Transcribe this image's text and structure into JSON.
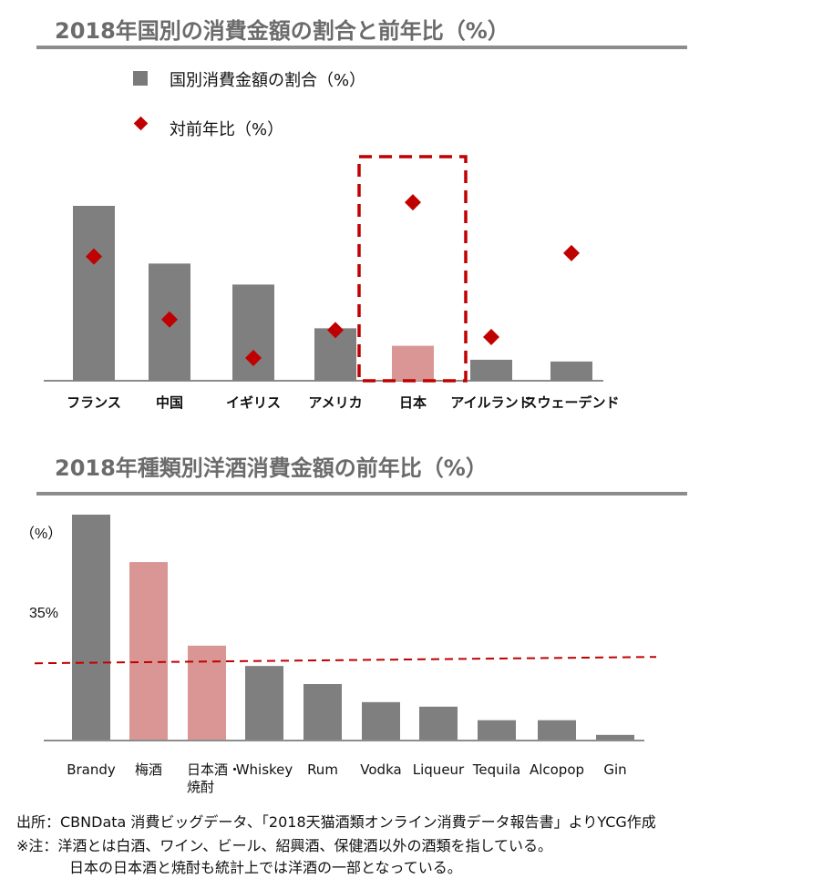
{
  "chart1": {
    "title": "2018年国別の消費金額の割合と前年比（%）",
    "legend": [
      {
        "label": "国別消費金額の割合（%）",
        "marker": "square"
      },
      {
        "label": "対前年比（%）",
        "marker": "diamond"
      }
    ]
  },
  "chart2": {
    "title": "2018年種類別洋酒消費金額の前年比（%）",
    "unit_label": "（%）",
    "ref_label": "35%"
  },
  "colors": {
    "bar": "#7f7f7f",
    "highlight": "#d99694",
    "marker": "#c00000",
    "dash": "#c00000"
  },
  "chart_data": [
    {
      "type": "bar",
      "categories": [
        "フランス",
        "中国",
        "イギリス",
        "アメリカ",
        "日本",
        "アイルランド",
        "スウェーデンド"
      ],
      "series": [
        {
          "name": "国別消費金額の割合（%）",
          "values": [
            100,
            67,
            55,
            30,
            20,
            12,
            11
          ]
        },
        {
          "name": "対前年比（%）",
          "marker": "diamond",
          "values": [
            71,
            35,
            13,
            29,
            102,
            25,
            73
          ]
        }
      ],
      "highlight": [
        "日本"
      ],
      "annotation": "dashed box around 日本"
    },
    {
      "type": "bar",
      "categories": [
        "Brandy",
        "梅酒",
        "日本酒・\n焼酎",
        "Whiskey",
        "Rum",
        "Vodka",
        "Liqueur",
        "Tequila",
        "Alcopop",
        "Gin"
      ],
      "values": [
        100,
        79,
        42,
        33,
        25,
        17,
        15,
        9,
        9,
        2.5
      ],
      "highlight": [
        "梅酒",
        "日本酒・\n焼酎"
      ],
      "reference_line": 35
    }
  ],
  "notes": {
    "source": "出所：CBNData 消費ビッグデータ、「2018天猫酒類オンライン消費データ報告書」よりYCG作成",
    "note1": "※注：洋酒とは白酒、ワイン、ビール、紹興酒、保健酒以外の酒類を指している。",
    "note2": "日本の日本酒と焼酎も統計上では洋酒の一部となっている。"
  }
}
